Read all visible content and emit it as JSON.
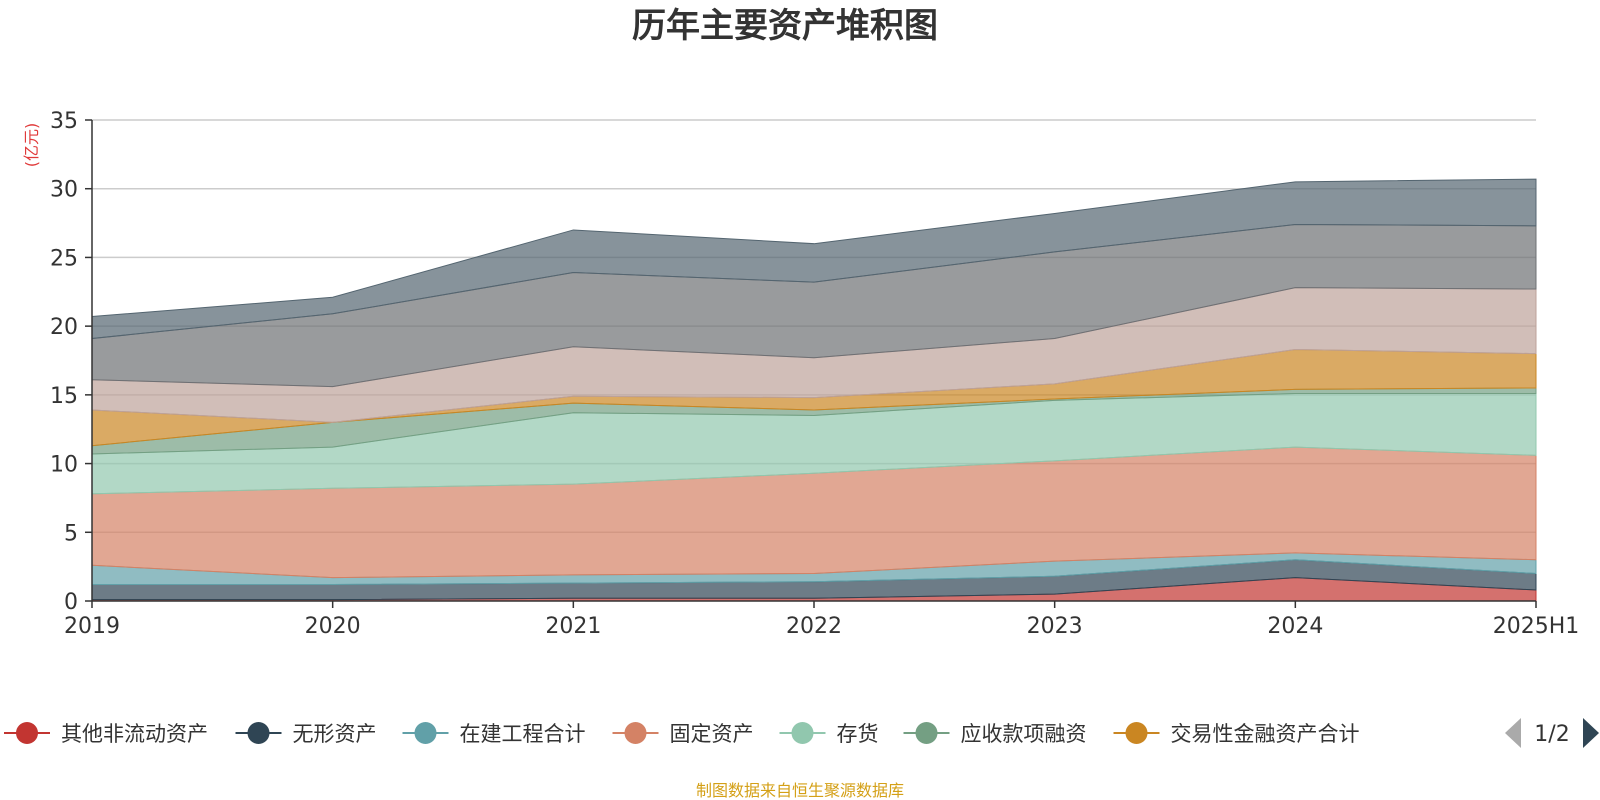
{
  "chart_data": {
    "type": "area",
    "stacked": true,
    "title": "历年主要资产堆积图",
    "unit": "(亿元)",
    "categories": [
      "2019",
      "2020",
      "2021",
      "2022",
      "2023",
      "2024",
      "2025H1"
    ],
    "ylim": [
      0,
      35
    ],
    "yticks": [
      0,
      5,
      10,
      15,
      20,
      25,
      30,
      35
    ],
    "grid": true,
    "series": [
      {
        "name": "其他非流动资产",
        "color": "#c23531",
        "values": [
          0.1,
          0.1,
          0.2,
          0.2,
          0.5,
          1.7,
          0.8
        ]
      },
      {
        "name": "无形资产",
        "color": "#2f4554",
        "values": [
          1.1,
          1.1,
          1.1,
          1.2,
          1.3,
          1.3,
          1.2
        ]
      },
      {
        "name": "在建工程合计",
        "color": "#61a0a8",
        "values": [
          1.4,
          0.5,
          0.6,
          0.6,
          1.1,
          0.5,
          1.0
        ]
      },
      {
        "name": "固定资产",
        "color": "#d48265",
        "values": [
          5.2,
          6.5,
          6.6,
          7.3,
          7.3,
          7.7,
          7.6
        ]
      },
      {
        "name": "存货",
        "color": "#91c7ae",
        "values": [
          2.9,
          3.0,
          5.2,
          4.2,
          4.4,
          3.9,
          4.5
        ]
      },
      {
        "name": "应收款项融资",
        "color": "#749f83",
        "values": [
          0.6,
          1.8,
          0.7,
          0.4,
          0.1,
          0.3,
          0.4
        ]
      },
      {
        "name": "交易性金融资产合计",
        "color": "#ca8622",
        "values": [
          2.6,
          0.0,
          0.5,
          0.9,
          1.1,
          2.9,
          2.5
        ]
      },
      {
        "name": "",
        "color": "#bda29a",
        "values": [
          2.2,
          2.6,
          3.6,
          2.9,
          3.3,
          4.5,
          4.7
        ]
      },
      {
        "name": "",
        "color": "#6e7074",
        "values": [
          3.0,
          5.3,
          5.4,
          5.5,
          6.3,
          4.6,
          4.6
        ]
      },
      {
        "name": "",
        "color": "#546570",
        "values": [
          1.6,
          1.2,
          3.1,
          2.8,
          2.8,
          3.1,
          3.4
        ]
      }
    ],
    "legend": {
      "position": "bottom",
      "items": [
        "其他非流动资产",
        "无形资产",
        "在建工程合计",
        "固定资产",
        "存货",
        "应收款项融资",
        "交易性金融资产合计"
      ],
      "page": "1/2"
    },
    "source_note": "制图数据来自恒生聚源数据库"
  }
}
